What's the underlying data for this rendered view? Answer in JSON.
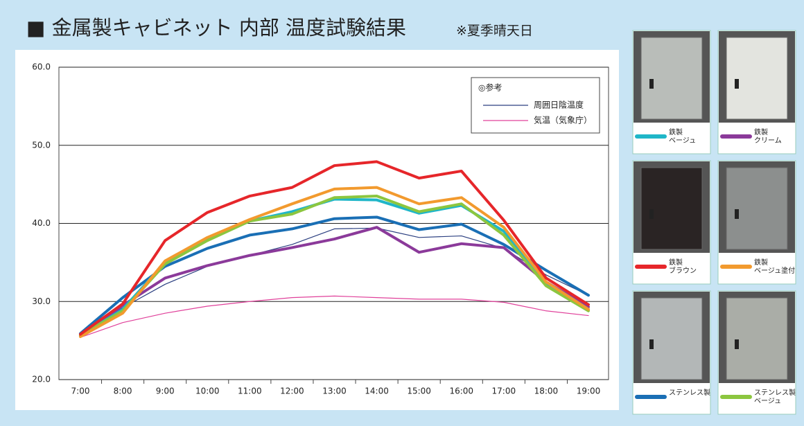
{
  "chart_data": {
    "type": "line",
    "title": "■ 金属製キャビネット 内部 温度試験結果",
    "subtitle": "※夏季晴天日",
    "legend_title": "◎参考",
    "categories": [
      "7:00",
      "8:00",
      "9:00",
      "10:00",
      "11:00",
      "12:00",
      "13:00",
      "14:00",
      "15:00",
      "16:00",
      "17:00",
      "18:00",
      "19:00"
    ],
    "ylim": [
      20,
      60
    ],
    "yticks": [
      {
        "value": 20,
        "label": "20.0"
      },
      {
        "value": 30,
        "label": "30.0"
      },
      {
        "value": 40,
        "label": "40.0"
      },
      {
        "value": 50,
        "label": "50.0"
      },
      {
        "value": 60,
        "label": "60.0"
      }
    ],
    "grid": true,
    "series": [
      {
        "name": "鉄製\nベージュ",
        "color": "#1fb6c8",
        "width": 4,
        "values": [
          25.6,
          29.0,
          35.0,
          38.0,
          40.3,
          41.5,
          43.1,
          43.0,
          41.3,
          42.3,
          39.0,
          32.3,
          29.0
        ]
      },
      {
        "name": "鉄製\nクリーム",
        "color": "#8b3a9a",
        "width": 4,
        "values": [
          25.6,
          29.5,
          33.0,
          34.6,
          35.9,
          36.9,
          38.0,
          39.5,
          36.3,
          37.4,
          36.9,
          32.5,
          29.3
        ]
      },
      {
        "name": "鉄製\nブラウン",
        "color": "#e6262a",
        "width": 4,
        "values": [
          25.8,
          29.7,
          37.8,
          41.4,
          43.5,
          44.6,
          47.4,
          47.9,
          45.8,
          46.7,
          40.4,
          33.0,
          29.6
        ]
      },
      {
        "name": "鉄製\nベージュ塗付",
        "color": "#f29a2e",
        "width": 4,
        "values": [
          25.5,
          28.5,
          35.2,
          38.2,
          40.5,
          42.5,
          44.4,
          44.6,
          42.5,
          43.3,
          39.5,
          32.5,
          29.0
        ]
      },
      {
        "name": "ステンレス製",
        "color": "#1a6fb5",
        "width": 4,
        "values": [
          25.9,
          30.5,
          34.5,
          36.8,
          38.5,
          39.3,
          40.6,
          40.8,
          39.2,
          39.9,
          37.3,
          34.0,
          30.8
        ]
      },
      {
        "name": "ステンレス製\nベージュ",
        "color": "#8cc63f",
        "width": 4,
        "values": [
          25.7,
          28.8,
          34.8,
          37.8,
          40.3,
          41.2,
          43.3,
          43.5,
          41.5,
          42.5,
          38.5,
          32.0,
          28.8
        ]
      },
      {
        "name": "周囲日陰温度",
        "color": "#2b3f80",
        "width": 1.2,
        "values": [
          25.7,
          29.2,
          32.2,
          34.5,
          35.9,
          37.3,
          39.3,
          39.4,
          38.2,
          38.4,
          36.8,
          33.4,
          30.8
        ]
      },
      {
        "name": "気温（気象庁）",
        "color": "#e0409a",
        "width": 1.2,
        "values": [
          25.4,
          27.3,
          28.5,
          29.4,
          30.0,
          30.5,
          30.7,
          30.5,
          30.3,
          30.3,
          29.9,
          28.8,
          28.2
        ]
      }
    ]
  }
}
